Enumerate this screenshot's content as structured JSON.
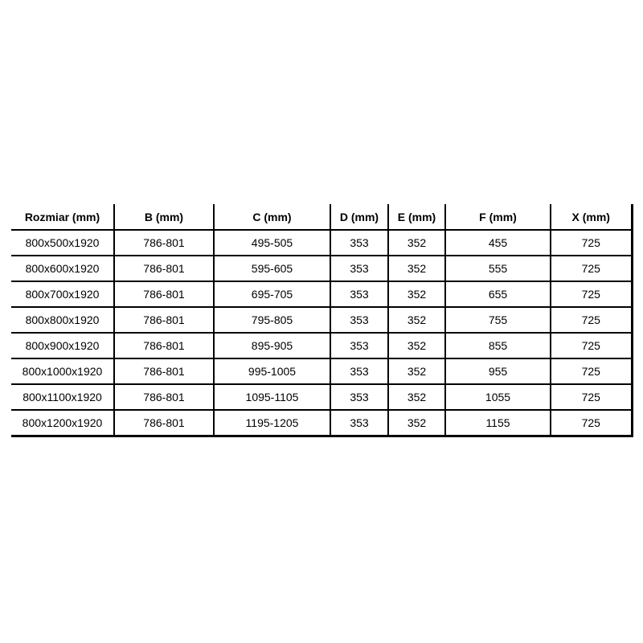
{
  "page": {
    "background": "#ffffff"
  },
  "colors": {
    "border": "#000000",
    "text": "#000000"
  },
  "chart_data": {
    "type": "table",
    "title": "",
    "columns": [
      "Rozmiar (mm)",
      "B (mm)",
      "C (mm)",
      "D (mm)",
      "E (mm)",
      "F (mm)",
      "X (mm)"
    ],
    "rows": [
      [
        "800x500x1920",
        "786-801",
        "495-505",
        "353",
        "352",
        "455",
        "725"
      ],
      [
        "800x600x1920",
        "786-801",
        "595-605",
        "353",
        "352",
        "555",
        "725"
      ],
      [
        "800x700x1920",
        "786-801",
        "695-705",
        "353",
        "352",
        "655",
        "725"
      ],
      [
        "800x800x1920",
        "786-801",
        "795-805",
        "353",
        "352",
        "755",
        "725"
      ],
      [
        "800x900x1920",
        "786-801",
        "895-905",
        "353",
        "352",
        "855",
        "725"
      ],
      [
        "800x1000x1920",
        "786-801",
        "995-1005",
        "353",
        "352",
        "955",
        "725"
      ],
      [
        "800x1100x1920",
        "786-801",
        "1095-1105",
        "353",
        "352",
        "1055",
        "725"
      ],
      [
        "800x1200x1920",
        "786-801",
        "1195-1205",
        "353",
        "352",
        "1155",
        "725"
      ]
    ]
  }
}
